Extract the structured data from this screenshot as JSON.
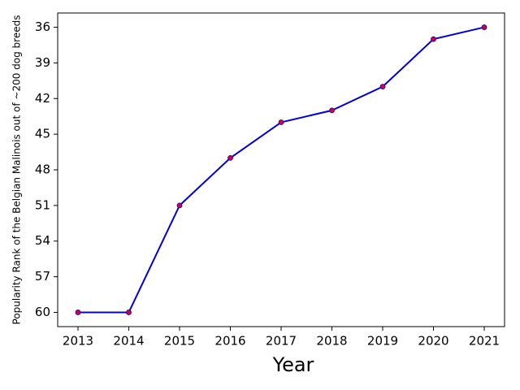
{
  "chart_data": {
    "type": "line",
    "x_label": "Year",
    "y_label": "Popularity Rank of the Belgian Malinois out of ~200 dog breeds",
    "x": [
      2013,
      2014,
      2015,
      2016,
      2017,
      2018,
      2019,
      2020,
      2021
    ],
    "series": [
      {
        "color": "#0000dd",
        "marker_color": "#dd0033",
        "values": [
          60,
          60,
          51,
          47,
          44,
          43,
          41,
          37,
          36
        ]
      }
    ],
    "xlim": [
      2012.6,
      2021.4
    ],
    "xticks": [
      2013,
      2014,
      2015,
      2016,
      2017,
      2018,
      2019,
      2020,
      2021
    ],
    "ylim": [
      61.2,
      34.8
    ],
    "yticks": [
      60,
      57,
      54,
      51,
      48,
      45,
      42,
      39,
      36
    ],
    "grid": false
  }
}
